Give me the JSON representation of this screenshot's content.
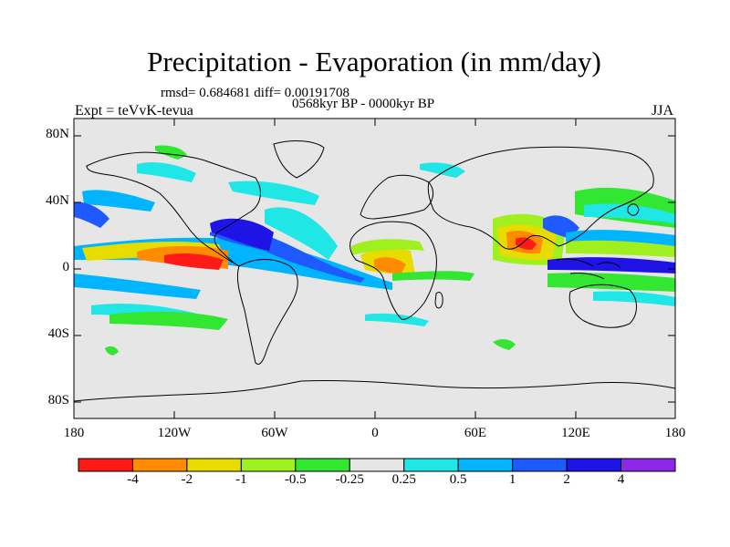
{
  "title": "Precipitation - Evaporation (in mm/day)",
  "stats": "rmsd= 0.684681 diff= 0.00191708",
  "period": "0568kyr BP - 0000kyr BP",
  "experiment": "Expt = teVvK-tevua",
  "season": "JJA",
  "lat_ticks": [
    "80N",
    "40N",
    "0",
    "40S",
    "80S"
  ],
  "lon_ticks": [
    "180",
    "120W",
    "60W",
    "0",
    "60E",
    "120E",
    "180"
  ],
  "colorbar": {
    "labels": [
      "-4",
      "-2",
      "-1",
      "-0.5",
      "-0.25",
      "0.25",
      "0.5",
      "1",
      "2",
      "4"
    ],
    "colors": [
      "#ff1a1a",
      "#ff8c00",
      "#e6dc00",
      "#a0f020",
      "#32e632",
      "#e6e6e6",
      "#20e6e6",
      "#00b4ff",
      "#1e5aff",
      "#1e14e6",
      "#8c28e6"
    ]
  },
  "map": {
    "background": "#e6e6e6",
    "lon_range": [
      -180,
      180
    ],
    "lat_range": [
      -90,
      90
    ]
  }
}
